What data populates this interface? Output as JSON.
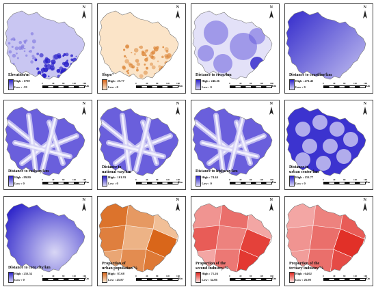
{
  "scale": {
    "ticks": [
      "0",
      "40",
      "80",
      "120",
      "160"
    ],
    "unit": "Km"
  },
  "panels": [
    {
      "caption": "Elevation/m",
      "high": "High : 1739",
      "low": "Low : -59",
      "type": "elev"
    },
    {
      "caption": "Slope/°",
      "high": "High : 25.77",
      "low": "Low : 0",
      "type": "slope"
    },
    {
      "caption": "Distance to river/km",
      "high": "High : 246.26",
      "low": "Low : 0",
      "type": "blue_field"
    },
    {
      "caption": "Distance to coastline/km",
      "high": "High : 471.45",
      "low": "Low : 0",
      "type": "blue_grad"
    },
    {
      "caption": "Distance to railway/km",
      "high": "High : 89.80",
      "low": "Low : 0",
      "type": "blue_lines"
    },
    {
      "caption": "Distance to\nnational way/km",
      "high": "High : 101.93",
      "low": "Low : 0",
      "type": "blue_lines"
    },
    {
      "caption": "Distance to highway/km",
      "high": "High : 74.44",
      "low": "Low : 0",
      "type": "blue_lines"
    },
    {
      "caption": "Distance to\nurban center/km",
      "high": "High : 153.77",
      "low": "Low : 0",
      "type": "blue_circles"
    },
    {
      "caption": "Distance to core city/km",
      "high": "High : 253.52",
      "low": "Low : 0",
      "type": "blue_core"
    },
    {
      "caption": "Proportion of\nurban population/%",
      "high": "High : 87.68",
      "low": "Low : 45.87",
      "type": "orange"
    },
    {
      "caption": "Proportion of the\nsecond industry/%",
      "high": "High : 71.26",
      "low": "Low : 34.66",
      "type": "red1"
    },
    {
      "caption": "Proportion of the\ntertiary industry/%",
      "high": "High : 64.02",
      "low": "Low : 26.98",
      "type": "red2"
    }
  ],
  "colors": {
    "blue_dark": "#2a21c9",
    "blue_light": "#d8d6f5",
    "orange_dark": "#d9661a",
    "orange_light": "#fbe6cf",
    "red_dark": "#e0261e",
    "red_light": "#fbdede"
  }
}
